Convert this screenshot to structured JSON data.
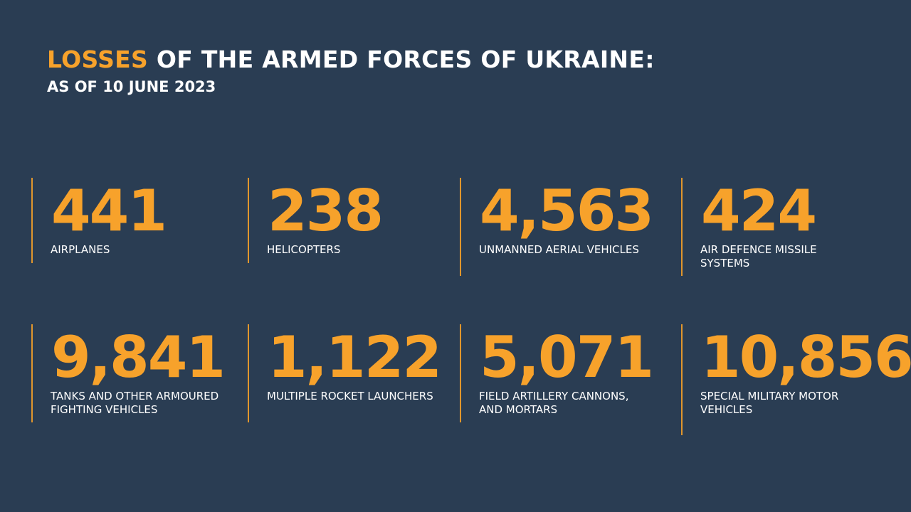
{
  "header": {
    "title_accent": "LOSSES",
    "title_rest": " OF THE ARMED FORCES OF UKRAINE:",
    "subtitle": "AS OF 10 JUNE 2023"
  },
  "colors": {
    "background": "#2a3d53",
    "accent": "#f7a22b",
    "text": "#ffffff"
  },
  "stats": [
    {
      "value": "441",
      "label": "AIRPLANES"
    },
    {
      "value": "238",
      "label": "HELICOPTERS"
    },
    {
      "value": "4,563",
      "label": "UNMANNED AERIAL VEHICLES"
    },
    {
      "value": "424",
      "label": "AIR DEFENCE MISSILE SYSTEMS"
    },
    {
      "value": "9,841",
      "label": "TANKS AND OTHER ARMOURED FIGHTING VEHICLES"
    },
    {
      "value": "1,122",
      "label": "MULTIPLE ROCKET LAUNCHERS"
    },
    {
      "value": "5,071",
      "label": "FIELD ARTILLERY CANNONS, AND MORTARS"
    },
    {
      "value": "10,856",
      "label": "SPECIAL MILITARY MOTOR VEHICLES"
    }
  ]
}
